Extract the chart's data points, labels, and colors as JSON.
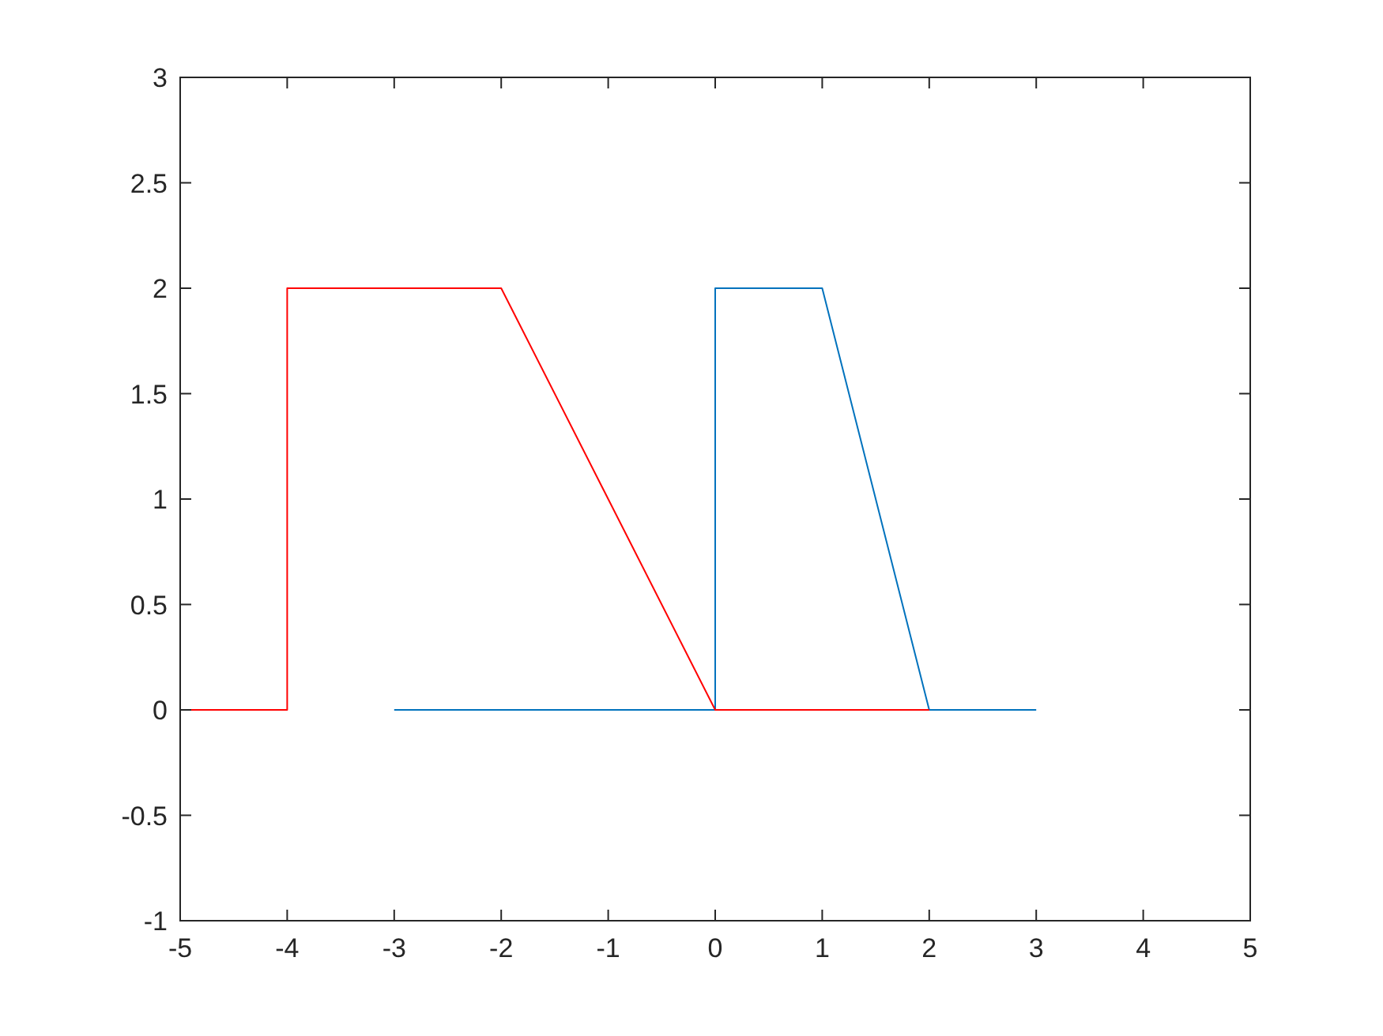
{
  "chart_data": {
    "type": "line",
    "xlim": [
      -5,
      5
    ],
    "ylim": [
      -1,
      3
    ],
    "xticks": [
      -5,
      -4,
      -3,
      -2,
      -1,
      0,
      1,
      2,
      3,
      4,
      5
    ],
    "yticks": [
      -1,
      -0.5,
      0,
      0.5,
      1,
      1.5,
      2,
      2.5,
      3
    ],
    "grid": false,
    "marker": "none",
    "line_style": "solid",
    "series": [
      {
        "color": "#0072bd",
        "x": [
          -3,
          0,
          0,
          1,
          2,
          3
        ],
        "values": [
          0,
          0,
          2,
          2,
          0,
          0
        ]
      },
      {
        "color": "#ff0000",
        "x": [
          -5,
          -4,
          -4,
          -2,
          0,
          2
        ],
        "values": [
          0,
          0,
          2,
          2,
          0,
          0
        ]
      }
    ]
  }
}
